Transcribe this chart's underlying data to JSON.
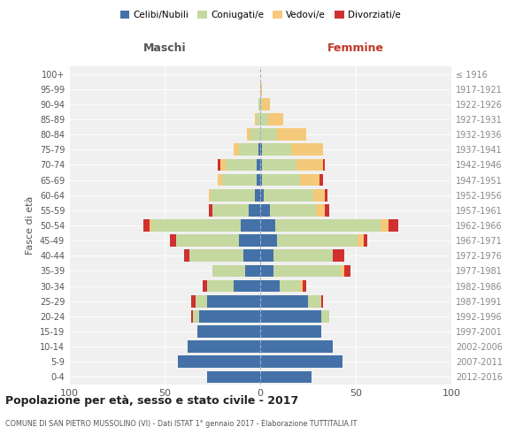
{
  "age_groups": [
    "0-4",
    "5-9",
    "10-14",
    "15-19",
    "20-24",
    "25-29",
    "30-34",
    "35-39",
    "40-44",
    "45-49",
    "50-54",
    "55-59",
    "60-64",
    "65-69",
    "70-74",
    "75-79",
    "80-84",
    "85-89",
    "90-94",
    "95-99",
    "100+"
  ],
  "birth_years": [
    "2012-2016",
    "2007-2011",
    "2002-2006",
    "1997-2001",
    "1992-1996",
    "1987-1991",
    "1982-1986",
    "1977-1981",
    "1972-1976",
    "1967-1971",
    "1962-1966",
    "1957-1961",
    "1952-1956",
    "1947-1951",
    "1942-1946",
    "1937-1941",
    "1932-1936",
    "1927-1931",
    "1922-1926",
    "1917-1921",
    "≤ 1916"
  ],
  "maschi": {
    "celibi": [
      28,
      43,
      38,
      33,
      32,
      28,
      14,
      8,
      9,
      11,
      10,
      6,
      3,
      2,
      2,
      1,
      0,
      0,
      0,
      0,
      0
    ],
    "coniugati": [
      0,
      0,
      0,
      0,
      3,
      6,
      14,
      17,
      28,
      33,
      47,
      19,
      23,
      18,
      16,
      10,
      5,
      2,
      1,
      0,
      0
    ],
    "vedovi": [
      0,
      0,
      0,
      0,
      0,
      0,
      0,
      0,
      0,
      0,
      1,
      0,
      1,
      2,
      3,
      3,
      2,
      1,
      0,
      0,
      0
    ],
    "divorziati": [
      0,
      0,
      0,
      0,
      1,
      2,
      2,
      0,
      3,
      3,
      3,
      2,
      0,
      0,
      1,
      0,
      0,
      0,
      0,
      0,
      0
    ]
  },
  "femmine": {
    "nubili": [
      27,
      43,
      38,
      32,
      32,
      25,
      10,
      7,
      7,
      9,
      8,
      5,
      2,
      1,
      1,
      1,
      0,
      0,
      0,
      0,
      0
    ],
    "coniugate": [
      0,
      0,
      0,
      0,
      4,
      7,
      11,
      35,
      31,
      42,
      55,
      24,
      26,
      20,
      18,
      15,
      9,
      4,
      1,
      0,
      0
    ],
    "vedove": [
      0,
      0,
      0,
      0,
      0,
      0,
      1,
      2,
      0,
      3,
      4,
      5,
      6,
      10,
      14,
      17,
      15,
      8,
      4,
      1,
      0
    ],
    "divorziate": [
      0,
      0,
      0,
      0,
      0,
      1,
      2,
      3,
      6,
      2,
      5,
      2,
      1,
      2,
      1,
      0,
      0,
      0,
      0,
      0,
      0
    ]
  },
  "colors": {
    "celibi": "#4472a8",
    "coniugati": "#c5d8a0",
    "vedovi": "#f5c97a",
    "divorziati": "#d03030"
  },
  "title": "Popolazione per età, sesso e stato civile - 2017",
  "subtitle": "COMUNE DI SAN PIETRO MUSSOLINO (VI) - Dati ISTAT 1° gennaio 2017 - Elaborazione TUTTITALIA.IT",
  "xlabel_left": "Maschi",
  "xlabel_right": "Femmine",
  "ylabel_left": "Fasce di età",
  "xlim": 100,
  "background": "#f0f0f0",
  "legend_labels": [
    "Celibi/Nubili",
    "Coniugati/e",
    "Vedovi/e",
    "Divorziati/e"
  ]
}
